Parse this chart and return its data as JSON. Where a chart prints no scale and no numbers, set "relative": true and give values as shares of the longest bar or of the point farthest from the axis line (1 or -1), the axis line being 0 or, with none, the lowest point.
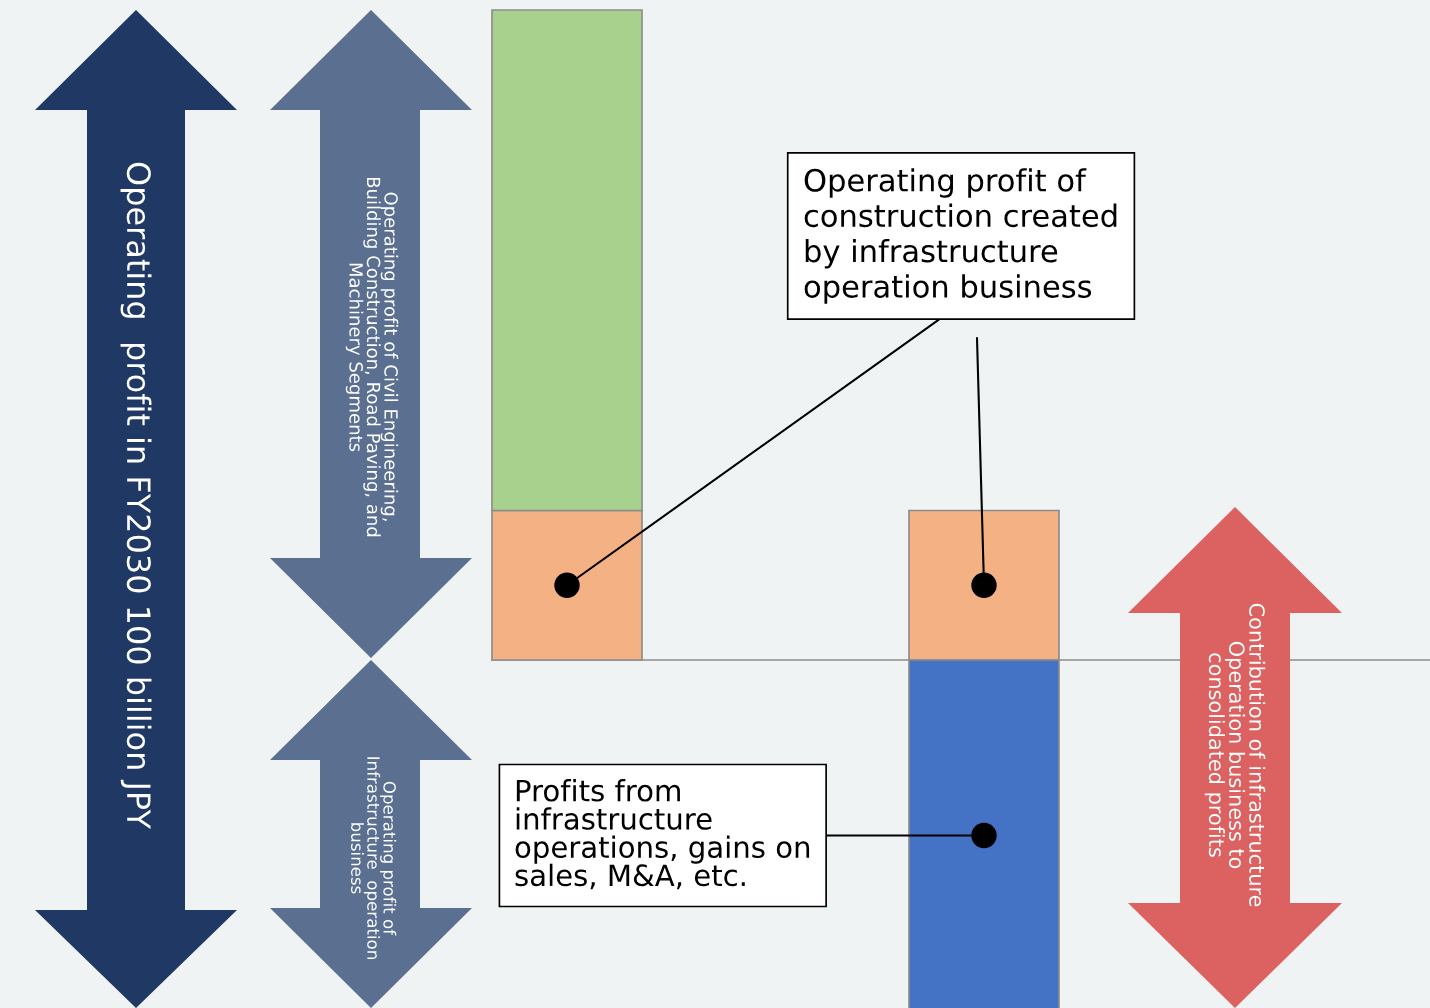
{
  "chart_data": {
    "type": "bar",
    "stacked": true,
    "relative": true,
    "categories": [
      null,
      null
    ],
    "series": [
      {
        "color": "#f4b183",
        "values": [
          0.23,
          0.23
        ]
      },
      {
        "colors": [
          "#a9d18e",
          "#4472c4"
        ],
        "values": [
          0.77,
          -0.54
        ]
      }
    ],
    "annotations": [
      "Operating  profit in FY2030 100 billion JPY",
      "Operating profit of Civil Engineering,\nBuilding Construction, Road Paving, and\nMachinery Segments",
      "Operating profit of\nInfrastructure  operation\nbusiness",
      "Contribution of infrastructure\nOperation business to\nconsolidated profits",
      "Operating profit of\nconstruction created\nby infrastructure\noperation business",
      "Profits from\ninfrastructure\noperations, gains on\nsales, M&A, etc."
    ]
  }
}
